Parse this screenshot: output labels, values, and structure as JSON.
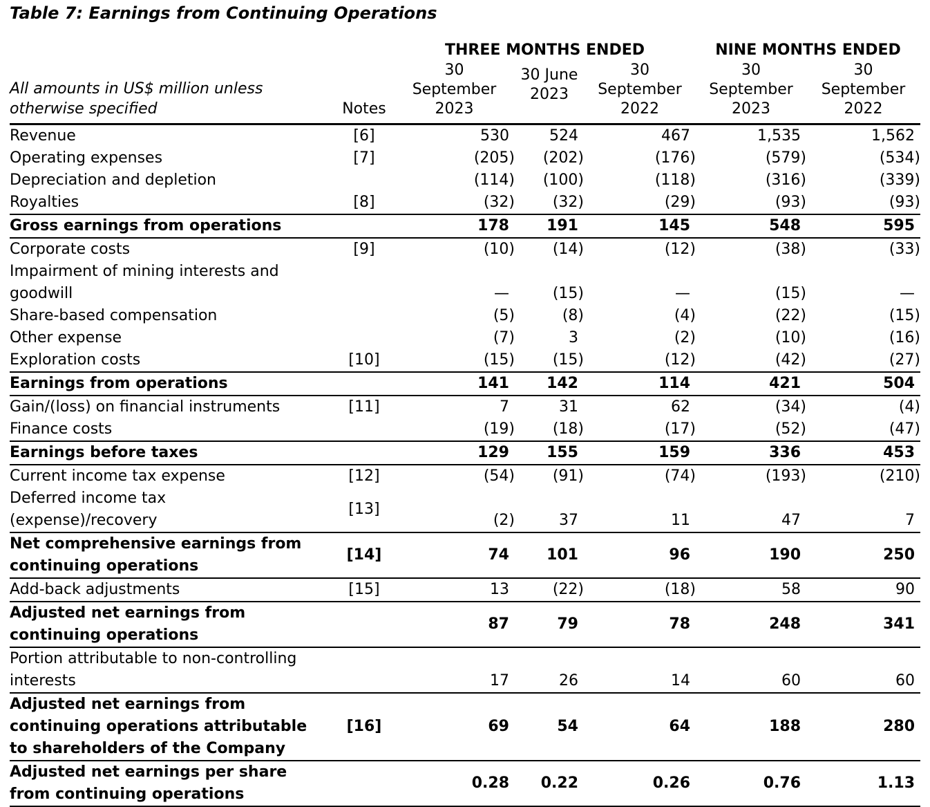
{
  "title": "Table 7: Earnings from Continuing Operations",
  "table": {
    "unit_note": "All amounts in US$ million unless\notherwise specified",
    "notes_header": "Notes",
    "group_headers": [
      "THREE MONTHS ENDED",
      "NINE MONTHS ENDED"
    ],
    "column_headers": [
      "30\nSeptember\n2023",
      "30 June\n2023",
      "30\nSeptember\n2022",
      "30\nSeptember\n2023",
      "30\nSeptember\n2022"
    ],
    "rows": [
      {
        "label": "Revenue",
        "note": "[6]",
        "total": false,
        "values": [
          "530",
          "524",
          "467",
          "1,535",
          "1,562"
        ]
      },
      {
        "label": "Operating expenses",
        "note": "[7]",
        "total": false,
        "values": [
          "(205)",
          "(202)",
          "(176)",
          "(579)",
          "(534)"
        ]
      },
      {
        "label": "Depreciation and depletion",
        "note": "",
        "total": false,
        "values": [
          "(114)",
          "(100)",
          "(118)",
          "(316)",
          "(339)"
        ]
      },
      {
        "label": "Royalties",
        "note": "[8]",
        "total": false,
        "values": [
          "(32)",
          "(32)",
          "(29)",
          "(93)",
          "(93)"
        ]
      },
      {
        "label": "Gross earnings from operations",
        "note": "",
        "total": true,
        "values": [
          "178",
          "191",
          "145",
          "548",
          "595"
        ]
      },
      {
        "label": "Corporate costs",
        "note": "[9]",
        "total": false,
        "values": [
          "(10)",
          "(14)",
          "(12)",
          "(38)",
          "(33)"
        ]
      },
      {
        "label": "Impairment of mining interests and\ngoodwill",
        "note": "",
        "total": false,
        "values": [
          "—",
          "(15)",
          "—",
          "(15)",
          "—"
        ]
      },
      {
        "label": "Share-based compensation",
        "note": "",
        "total": false,
        "values": [
          "(5)",
          "(8)",
          "(4)",
          "(22)",
          "(15)"
        ]
      },
      {
        "label": "Other expense",
        "note": "",
        "total": false,
        "values": [
          "(7)",
          "3",
          "(2)",
          "(10)",
          "(16)"
        ]
      },
      {
        "label": "Exploration costs",
        "note": "[10]",
        "total": false,
        "values": [
          "(15)",
          "(15)",
          "(12)",
          "(42)",
          "(27)"
        ]
      },
      {
        "label": "Earnings from operations",
        "note": "",
        "total": true,
        "values": [
          "141",
          "142",
          "114",
          "421",
          "504"
        ]
      },
      {
        "label": "Gain/(loss) on financial instruments",
        "note": "[11]",
        "total": false,
        "values": [
          "7",
          "31",
          "62",
          "(34)",
          "(4)"
        ]
      },
      {
        "label": "Finance costs",
        "note": "",
        "total": false,
        "values": [
          "(19)",
          "(18)",
          "(17)",
          "(52)",
          "(47)"
        ]
      },
      {
        "label": "Earnings before taxes",
        "note": "",
        "total": true,
        "values": [
          "129",
          "155",
          "159",
          "336",
          "453"
        ]
      },
      {
        "label": "Current income tax expense",
        "note": "[12]",
        "total": false,
        "values": [
          "(54)",
          "(91)",
          "(74)",
          "(193)",
          "(210)"
        ]
      },
      {
        "label": "Deferred income tax\n(expense)/recovery",
        "note": "[13]",
        "total": false,
        "values": [
          "(2)",
          "37",
          "11",
          "47",
          "7"
        ]
      },
      {
        "label": "Net comprehensive earnings from\ncontinuing operations",
        "note": "[14]",
        "total": true,
        "values": [
          "74",
          "101",
          "96",
          "190",
          "250"
        ]
      },
      {
        "label": "Add-back adjustments",
        "note": "[15]",
        "total": false,
        "values": [
          "13",
          "(22)",
          "(18)",
          "58",
          "90"
        ]
      },
      {
        "label": "Adjusted net earnings from\ncontinuing operations",
        "note": "",
        "total": true,
        "values": [
          "87",
          "79",
          "78",
          "248",
          "341"
        ]
      },
      {
        "label": "Portion attributable to non-controlling\ninterests",
        "note": "",
        "total": false,
        "values": [
          "17",
          "26",
          "14",
          "60",
          "60"
        ]
      },
      {
        "label": "Adjusted net earnings from\ncontinuing operations attributable\nto shareholders of the Company",
        "note": "[16]",
        "total": true,
        "values": [
          "69",
          "54",
          "64",
          "188",
          "280"
        ]
      },
      {
        "label": "Adjusted net earnings per share\nfrom continuing operations",
        "note": "",
        "total": true,
        "values": [
          "0.28",
          "0.22",
          "0.26",
          "0.76",
          "1.13"
        ]
      }
    ]
  }
}
